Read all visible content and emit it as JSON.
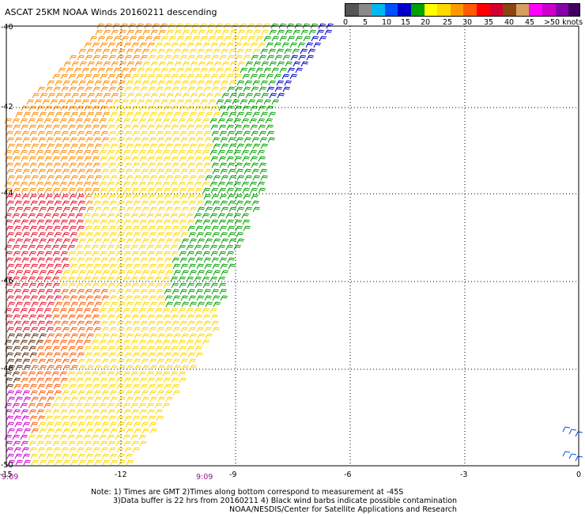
{
  "title": "ASCAT 25KM NOAA Winds 20160211 descending",
  "legend": {
    "colors": [
      "#555555",
      "#8a8a8a",
      "#00b8f0",
      "#0050ff",
      "#0000c8",
      "#00a000",
      "#ffff00",
      "#ffd800",
      "#ff9800",
      "#ff5a00",
      "#ff0000",
      "#d40030",
      "#8b4513",
      "#d4a060",
      "#ff00ff",
      "#cc00cc",
      "#8800aa",
      "#400060"
    ],
    "labels": [
      "0",
      "5",
      "10",
      "15",
      "20",
      "25",
      "30",
      "35",
      "40",
      "45",
      ">50 knots"
    ]
  },
  "map": {
    "lon_ticks": [
      "-15",
      "-12",
      "-9",
      "-6",
      "-3",
      "0"
    ],
    "lat_ticks": [
      "-40",
      "-42",
      "-44",
      "-46",
      "-48",
      "-50"
    ]
  },
  "time_labels": [
    "9:09",
    "9:09"
  ],
  "footer": {
    "line1": "Note: 1) Times are GMT 2)Times along bottom correspond to measurement at -45S",
    "line2": "3)Data buffer is 22 hrs from 20160211 4) Black wind barbs indicate possible contamination",
    "line3": "NOAA/NESDIS/Center for Satellite Applications and Research"
  }
}
